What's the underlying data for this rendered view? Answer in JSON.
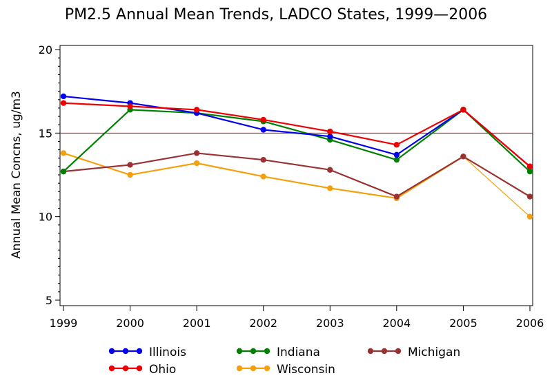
{
  "chart_data": {
    "type": "line",
    "title": "PM2.5 Annual Mean Trends, LADCO States, 1999—2006",
    "xlabel": "",
    "ylabel": "Annual Mean Concns, ug/m3",
    "x": [
      1999,
      2000,
      2001,
      2002,
      2003,
      2004,
      2005,
      2006
    ],
    "x_tick_labels": [
      "1999",
      "2000",
      "2001",
      "2002",
      "2003",
      "2004",
      "2005",
      "2006"
    ],
    "ylim": [
      5,
      20
    ],
    "y_ticks": [
      5,
      10,
      15,
      20
    ],
    "y_tick_labels": [
      "5",
      "10",
      "15",
      "20"
    ],
    "reference_line": {
      "value": 15,
      "color": "#cc0000"
    },
    "grid": false,
    "legend_position": "bottom",
    "series": [
      {
        "name": "Illinois",
        "color": "#0000ee",
        "values": [
          17.2,
          16.8,
          16.2,
          15.2,
          14.8,
          13.7,
          16.4,
          13.0
        ],
        "marker_until": 7
      },
      {
        "name": "Indiana",
        "color": "#008000",
        "values": [
          12.7,
          16.4,
          16.2,
          15.7,
          14.6,
          13.4,
          16.4,
          12.7
        ],
        "marker_until": 7
      },
      {
        "name": "Michigan",
        "color": "#993333",
        "values": [
          12.7,
          13.1,
          13.8,
          13.4,
          12.8,
          11.2,
          13.6,
          11.2
        ],
        "marker_until": 7
      },
      {
        "name": "Ohio",
        "color": "#ee0000",
        "values": [
          16.8,
          16.6,
          16.4,
          15.8,
          15.1,
          14.3,
          16.4,
          13.0
        ],
        "marker_until": 7
      },
      {
        "name": "Wisconsin",
        "color": "#f5a00a",
        "values": [
          13.8,
          12.5,
          13.2,
          12.4,
          11.7,
          11.1,
          13.6,
          10.0
        ],
        "marker_until": 6
      }
    ]
  }
}
